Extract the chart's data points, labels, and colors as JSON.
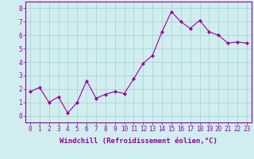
{
  "x": [
    0,
    1,
    2,
    3,
    4,
    5,
    6,
    7,
    8,
    9,
    10,
    11,
    12,
    13,
    14,
    15,
    16,
    17,
    18,
    19,
    20,
    21,
    22,
    23
  ],
  "y": [
    1.8,
    2.1,
    1.0,
    1.4,
    0.2,
    1.0,
    2.6,
    1.3,
    1.6,
    1.8,
    1.65,
    2.75,
    3.9,
    4.5,
    6.25,
    7.75,
    7.0,
    6.5,
    7.1,
    6.25,
    6.0,
    5.4,
    5.5,
    5.4
  ],
  "line_color": "#990099",
  "marker": "D",
  "marker_size": 2,
  "bg_color": "#d0eef0",
  "grid_color": "#aacccc",
  "xlabel": "Windchill (Refroidissement éolien,°C)",
  "xlim": [
    -0.5,
    23.5
  ],
  "ylim": [
    -0.5,
    8.5
  ],
  "yticks": [
    0,
    1,
    2,
    3,
    4,
    5,
    6,
    7,
    8
  ],
  "xticks": [
    0,
    1,
    2,
    3,
    4,
    5,
    6,
    7,
    8,
    9,
    10,
    11,
    12,
    13,
    14,
    15,
    16,
    17,
    18,
    19,
    20,
    21,
    22,
    23
  ],
  "tick_color": "#990099",
  "label_color": "#990099",
  "tick_fontsize": 5.5,
  "xlabel_fontsize": 6.5,
  "spine_color": "#990099"
}
